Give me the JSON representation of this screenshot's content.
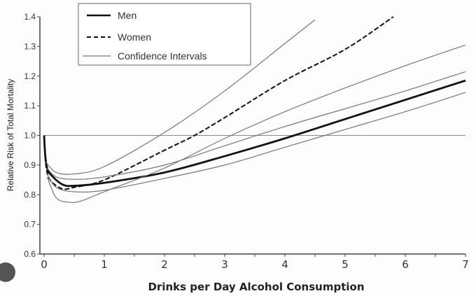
{
  "chart_data": {
    "type": "line",
    "xlabel": "Drinks per Day Alcohol Consumption",
    "ylabel": "Relative Risk of Total Mortality",
    "xlim": [
      0,
      7
    ],
    "ylim": [
      0.6,
      1.4
    ],
    "xticks": [
      "0",
      "1",
      "2",
      "3",
      "4",
      "5",
      "6",
      "7"
    ],
    "yticks": [
      "0.6",
      "0.7",
      "0.8",
      "0.9",
      "1.0",
      "1.1",
      "1.2",
      "1.3",
      "1.4"
    ],
    "grid": false,
    "legend_position": "top-left",
    "legend": [
      "Men",
      "Women",
      "Confidence Intervals"
    ],
    "reference_line": 1.0,
    "series": [
      {
        "name": "Men",
        "style": "solid-thick",
        "points": [
          [
            0,
            1.0
          ],
          [
            0.02,
            0.93
          ],
          [
            0.05,
            0.89
          ],
          [
            0.1,
            0.87
          ],
          [
            0.3,
            0.835
          ],
          [
            0.5,
            0.83
          ],
          [
            1,
            0.84
          ],
          [
            2,
            0.875
          ],
          [
            3,
            0.93
          ],
          [
            4,
            0.99
          ],
          [
            5,
            1.055
          ],
          [
            6,
            1.12
          ],
          [
            7,
            1.185
          ]
        ]
      },
      {
        "name": "Women",
        "style": "dashed",
        "points": [
          [
            0,
            1.0
          ],
          [
            0.03,
            0.9
          ],
          [
            0.1,
            0.85
          ],
          [
            0.3,
            0.82
          ],
          [
            0.5,
            0.825
          ],
          [
            1,
            0.85
          ],
          [
            2,
            0.95
          ],
          [
            2.5,
            1.0
          ],
          [
            3,
            1.06
          ],
          [
            4,
            1.185
          ],
          [
            5,
            1.29
          ],
          [
            5.8,
            1.4
          ]
        ]
      },
      {
        "name": "Women CI upper",
        "style": "thin",
        "points": [
          [
            0.03,
            0.91
          ],
          [
            0.2,
            0.875
          ],
          [
            0.5,
            0.87
          ],
          [
            1,
            0.895
          ],
          [
            2,
            1.01
          ],
          [
            3,
            1.15
          ],
          [
            4,
            1.31
          ],
          [
            4.5,
            1.39
          ]
        ]
      },
      {
        "name": "Women CI lower",
        "style": "thin",
        "points": [
          [
            0.05,
            0.86
          ],
          [
            0.2,
            0.79
          ],
          [
            0.4,
            0.775
          ],
          [
            0.6,
            0.778
          ],
          [
            1,
            0.81
          ],
          [
            2,
            0.89
          ],
          [
            3,
            0.99
          ],
          [
            4,
            1.08
          ],
          [
            5,
            1.16
          ],
          [
            6,
            1.235
          ],
          [
            7,
            1.305
          ]
        ]
      },
      {
        "name": "Men CI upper",
        "style": "thin",
        "points": [
          [
            0.05,
            0.89
          ],
          [
            0.2,
            0.86
          ],
          [
            0.5,
            0.852
          ],
          [
            1,
            0.86
          ],
          [
            2,
            0.9
          ],
          [
            3,
            0.965
          ],
          [
            4,
            1.03
          ],
          [
            5,
            1.09
          ],
          [
            6,
            1.15
          ],
          [
            7,
            1.215
          ]
        ]
      },
      {
        "name": "Men CI lower",
        "style": "thin",
        "points": [
          [
            0.05,
            0.87
          ],
          [
            0.2,
            0.825
          ],
          [
            0.5,
            0.81
          ],
          [
            1,
            0.815
          ],
          [
            2,
            0.855
          ],
          [
            3,
            0.9
          ],
          [
            4,
            0.96
          ],
          [
            5,
            1.02
          ],
          [
            6,
            1.08
          ],
          [
            7,
            1.145
          ]
        ]
      }
    ],
    "colors": {
      "line": "#111111",
      "ci": "#777777",
      "axis": "#444444"
    }
  }
}
